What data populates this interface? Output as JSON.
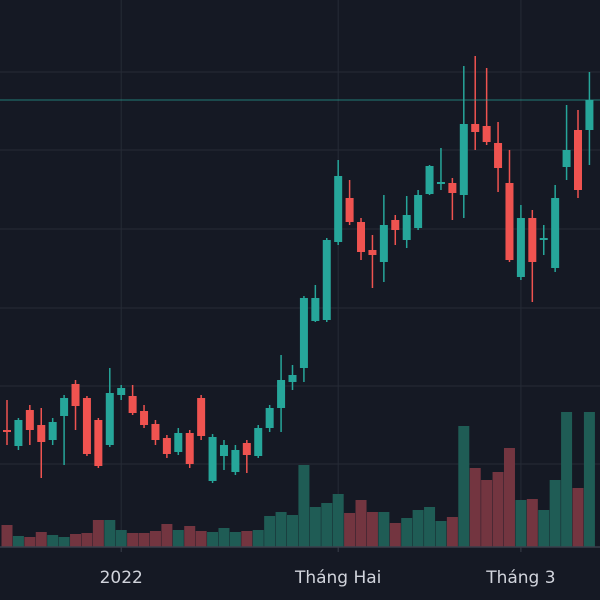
{
  "chart_data": {
    "type": "candlestick",
    "categories": [
      null,
      null,
      null,
      null,
      null,
      null,
      null,
      null,
      null,
      null,
      "2022",
      null,
      null,
      null,
      null,
      null,
      null,
      null,
      null,
      null,
      null,
      null,
      null,
      null,
      null,
      null,
      null,
      null,
      null,
      "Tháng Hai",
      null,
      null,
      null,
      null,
      null,
      null,
      null,
      null,
      null,
      null,
      null,
      null,
      null,
      null,
      null,
      "Tháng 3",
      null,
      null,
      null,
      null,
      null,
      null
    ],
    "open": [
      170,
      154,
      190,
      175,
      160,
      184,
      216,
      202,
      180,
      155,
      205,
      204,
      189,
      176,
      162,
      148,
      167,
      202,
      119,
      144,
      128,
      157,
      144,
      172,
      192,
      218,
      232,
      279,
      280,
      358,
      402,
      378,
      350,
      338,
      380,
      360,
      372,
      406,
      416,
      417,
      405,
      476,
      474,
      457,
      417,
      323,
      382,
      360,
      332,
      433,
      470,
      470
    ],
    "high": [
      200,
      182,
      195,
      192,
      182,
      205,
      220,
      204,
      182,
      232,
      215,
      215,
      195,
      180,
      165,
      172,
      170,
      205,
      166,
      160,
      155,
      160,
      175,
      195,
      245,
      235,
      304,
      315,
      362,
      440,
      420,
      382,
      365,
      405,
      385,
      404,
      410,
      435,
      452,
      422,
      534,
      544,
      532,
      478,
      450,
      395,
      390,
      375,
      415,
      495,
      490,
      528
    ],
    "low": [
      155,
      150,
      155,
      122,
      155,
      135,
      170,
      144,
      132,
      153,
      200,
      185,
      172,
      155,
      142,
      145,
      132,
      160,
      117,
      130,
      125,
      127,
      142,
      168,
      168,
      210,
      218,
      278,
      278,
      355,
      375,
      340,
      312,
      318,
      355,
      352,
      370,
      405,
      410,
      380,
      382,
      450,
      455,
      408,
      338,
      320,
      298,
      345,
      328,
      420,
      402,
      435
    ],
    "close": [
      168,
      180,
      170,
      158,
      178,
      202,
      194,
      146,
      134,
      207,
      212,
      187,
      175,
      160,
      146,
      167,
      136,
      164,
      163,
      155,
      150,
      145,
      172,
      192,
      220,
      225,
      302,
      302,
      360,
      424,
      378,
      348,
      345,
      375,
      370,
      385,
      405,
      434,
      418,
      407,
      476,
      468,
      458,
      432,
      340,
      382,
      338,
      362,
      402,
      450,
      410,
      500
    ],
    "volume": [
      22,
      11,
      10,
      15,
      12,
      10,
      13,
      14,
      27,
      27,
      17,
      14,
      14,
      16,
      23,
      17,
      21,
      16,
      15,
      19,
      15,
      16,
      17,
      31,
      35,
      32,
      82,
      40,
      44,
      53,
      34,
      47,
      35,
      35,
      24,
      29,
      37,
      40,
      26,
      30,
      121,
      79,
      67,
      75,
      99,
      47,
      48,
      37,
      67,
      135,
      59,
      135
    ],
    "up_color": "#26a69a",
    "down_color": "#ef5350",
    "volume_up_color": "#1f5c55",
    "volume_down_color": "#733540",
    "ylim": [
      53,
      600
    ],
    "yticks": [
      136,
      214,
      292,
      371,
      450,
      528
    ],
    "y2lim": [
      0,
      547
    ],
    "grid": true
  }
}
